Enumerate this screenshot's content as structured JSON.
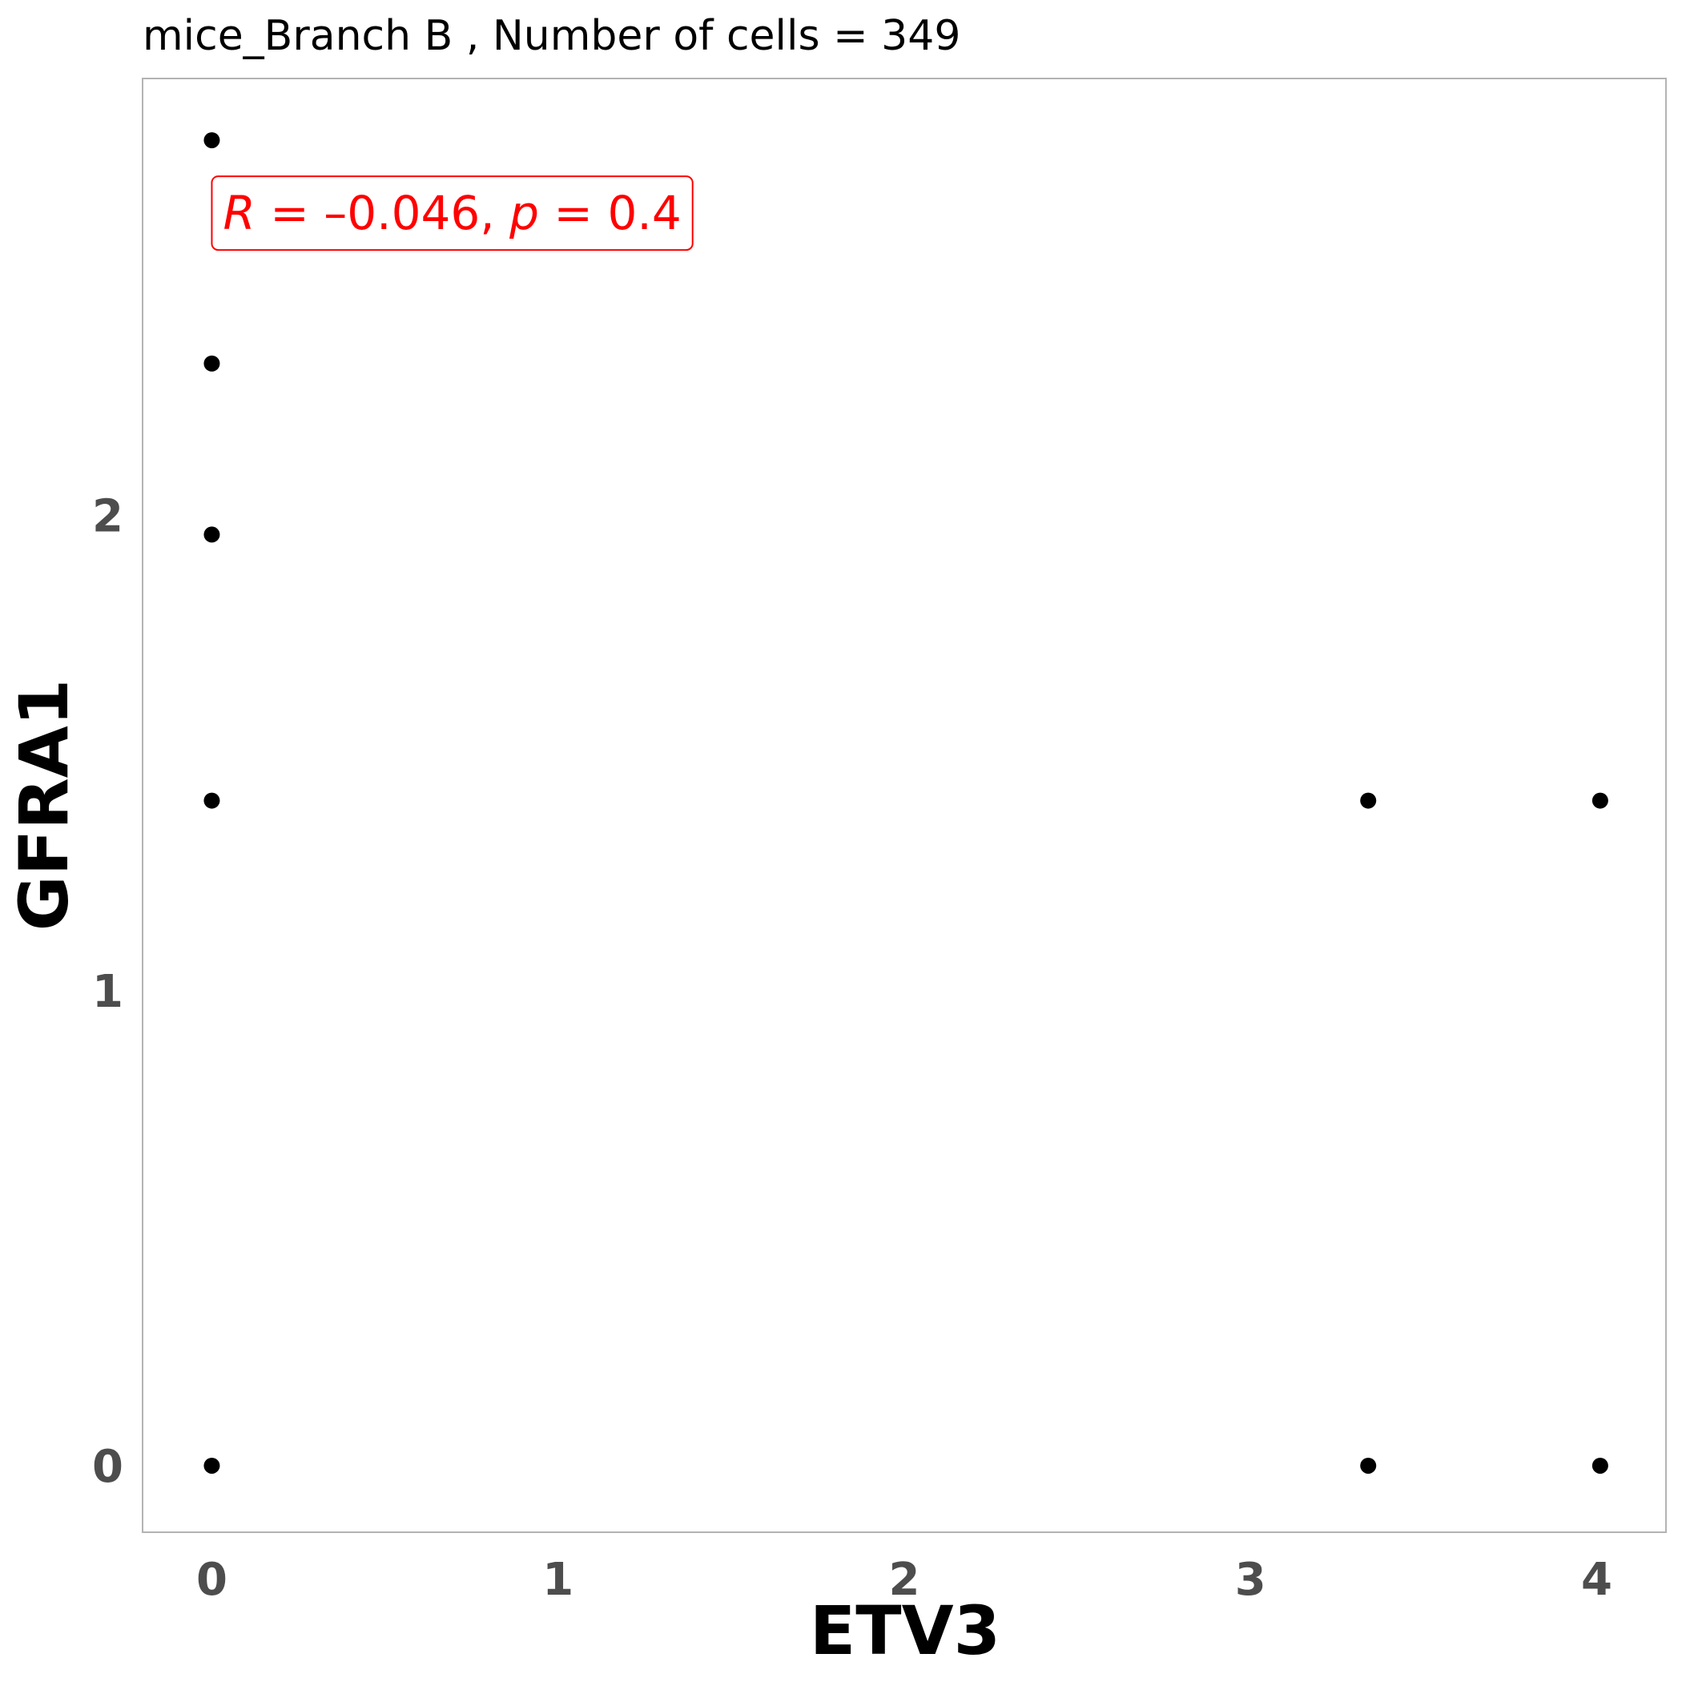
{
  "chart_data": {
    "type": "scatter",
    "title": "mice_Branch B , Number of cells =  349",
    "xlabel": "ETV3",
    "ylabel": "GFRA1",
    "xlim": [
      -0.2,
      4.2
    ],
    "ylim": [
      -0.14,
      2.92
    ],
    "xticks": [
      0,
      1,
      2,
      3,
      4
    ],
    "yticks": [
      0,
      1,
      2
    ],
    "grid": false,
    "point_color": "#000000",
    "frame_color": "#b3b3b3",
    "points": [
      {
        "x": 0,
        "y": 0
      },
      {
        "x": 0,
        "y": 1.4
      },
      {
        "x": 0,
        "y": 1.96
      },
      {
        "x": 0,
        "y": 2.32
      },
      {
        "x": 0,
        "y": 2.79
      },
      {
        "x": 3.34,
        "y": 0
      },
      {
        "x": 3.34,
        "y": 1.4
      },
      {
        "x": 4.01,
        "y": 0
      },
      {
        "x": 4.01,
        "y": 1.4
      }
    ],
    "annotation": {
      "r_symbol": "R",
      "r_equals": " = ",
      "r_value": "–0.046",
      "sep": ", ",
      "p_symbol": "p",
      "p_equals": " = ",
      "p_value": "0.4",
      "color": "#ff0000",
      "anchor_x": 0,
      "anchor_y": 2.64
    }
  }
}
